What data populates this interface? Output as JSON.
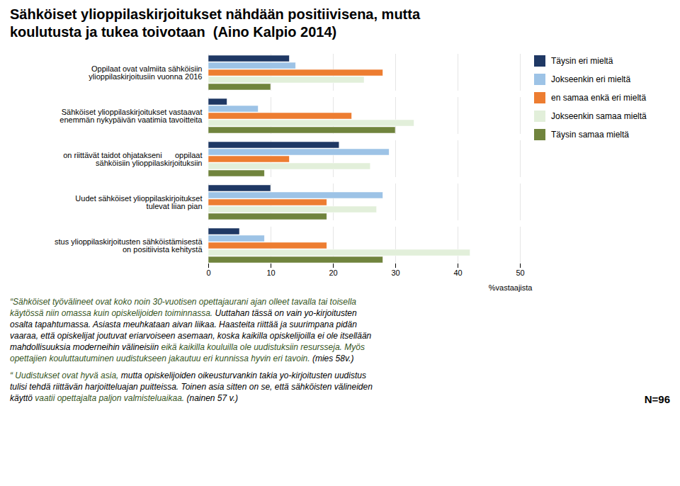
{
  "chart_data": {
    "type": "bar",
    "orientation": "horizontal",
    "title": "Sähköiset ylioppilaskirjoitukset nähdään positiivisena, mutta\nkoulutusta ja tukea toivotaan  (Aino Kalpio 2014)",
    "categories": [
      "Oppilaat ovat valmiita sähköisiin\nylioppilaskirjoitusiin vuonna 2016",
      "Sähköiset ylioppilaskirjoitukset vastaavat\nenemmän nykypäivän vaatimia tavoitteita",
      "on riittävät taidot ohjatakseni      oppilaat\nsähköisiin ylioppilaskirjoituksiin",
      "Uudet sähköiset ylioppilaskirjoitukset\ntulevat liian pian",
      "stus ylioppilaskirjoitusten sähköistämisestä\non positiivista kehitystä"
    ],
    "series": [
      {
        "name": "Täysin eri mieltä",
        "color": "#1F3864",
        "values": [
          13,
          3,
          21,
          10,
          5
        ]
      },
      {
        "name": "Jokseenkin eri mieltä",
        "color": "#9DC3E6",
        "values": [
          14,
          8,
          29,
          28,
          9
        ]
      },
      {
        "name": "en samaa enkä eri mieltä",
        "color": "#ED7D31",
        "values": [
          28,
          23,
          13,
          19,
          19
        ]
      },
      {
        "name": "Jokseenkin samaa mieltä",
        "color": "#E2EFDA",
        "values": [
          25,
          33,
          26,
          27,
          42
        ]
      },
      {
        "name": "Täysin samaa mieltä",
        "color": "#70843D",
        "values": [
          10,
          30,
          9,
          19,
          28
        ]
      }
    ],
    "xlabel": "%vastaajista",
    "xlim": [
      0,
      50
    ],
    "xticks": [
      0,
      10,
      20,
      30,
      40,
      50
    ],
    "grid": true,
    "legend": "right",
    "annotations": [
      {
        "lines": [
          [
            {
              "text": "“Sähköiset työvälineet ovat koko noin 30-vuotisen opettajaurani ajan olleet tavalla tai toisella",
              "color": "#375623"
            }
          ],
          [
            {
              "text": "käytössä niin omassa kuin opiskelijoiden toiminnassa.",
              "color": "#375623"
            },
            {
              "text": " Uuttahan tässä on vain yo-kirjoitusten",
              "color": "#000000"
            }
          ],
          [
            {
              "text": "osalta tapahtumassa. Asiasta meuhkataan aivan liikaa.",
              "color": "#000000"
            },
            {
              "text": " Haasteita riittää ja suurimpana pidän",
              "color": "#000000"
            }
          ],
          [
            {
              "text": "vaaraa, että opiskelijat joutuvat eriarvoiseen asemaan, koska kaikilla opiskelijoilla ei ole itsellään",
              "color": "#000000"
            }
          ],
          [
            {
              "text": "mahdollisuuksia moderneihin välineisiin",
              "color": "#000000"
            },
            {
              "text": " eikä kaikilla kouluilla ole uudistuksiin resursseja.",
              "color": "#375623"
            },
            {
              "text": " Myös",
              "color": "#375623"
            }
          ],
          [
            {
              "text": "opettajien kouluttautuminen uudistukseen jakautuu eri kunnissa hyvin eri tavoin.",
              "color": "#375623"
            },
            {
              "text": " (mies 58v.)",
              "color": "#000000"
            }
          ]
        ]
      },
      {
        "lines": [
          [
            {
              "text": "“ Uudistukset ovat hyvä asia,",
              "color": "#375623"
            },
            {
              "text": " mutta opiskelijoiden oikeusturvankin takia yo-kirjoitusten uudistus",
              "color": "#000000"
            }
          ],
          [
            {
              "text": "tulisi tehdä riittävän harjoitteluajan puitteissa. Toinen asia sitten on se, että sähköisten välineiden",
              "color": "#000000"
            }
          ],
          [
            {
              "text": "käyttö",
              "color": "#000000"
            },
            {
              "text": " vaatii opettajalta paljon valmisteluaikaa.",
              "color": "#375623"
            },
            {
              "text": " (nainen 57 v.)",
              "color": "#000000"
            }
          ]
        ]
      },
      {
        "text": "N=96"
      }
    ]
  }
}
